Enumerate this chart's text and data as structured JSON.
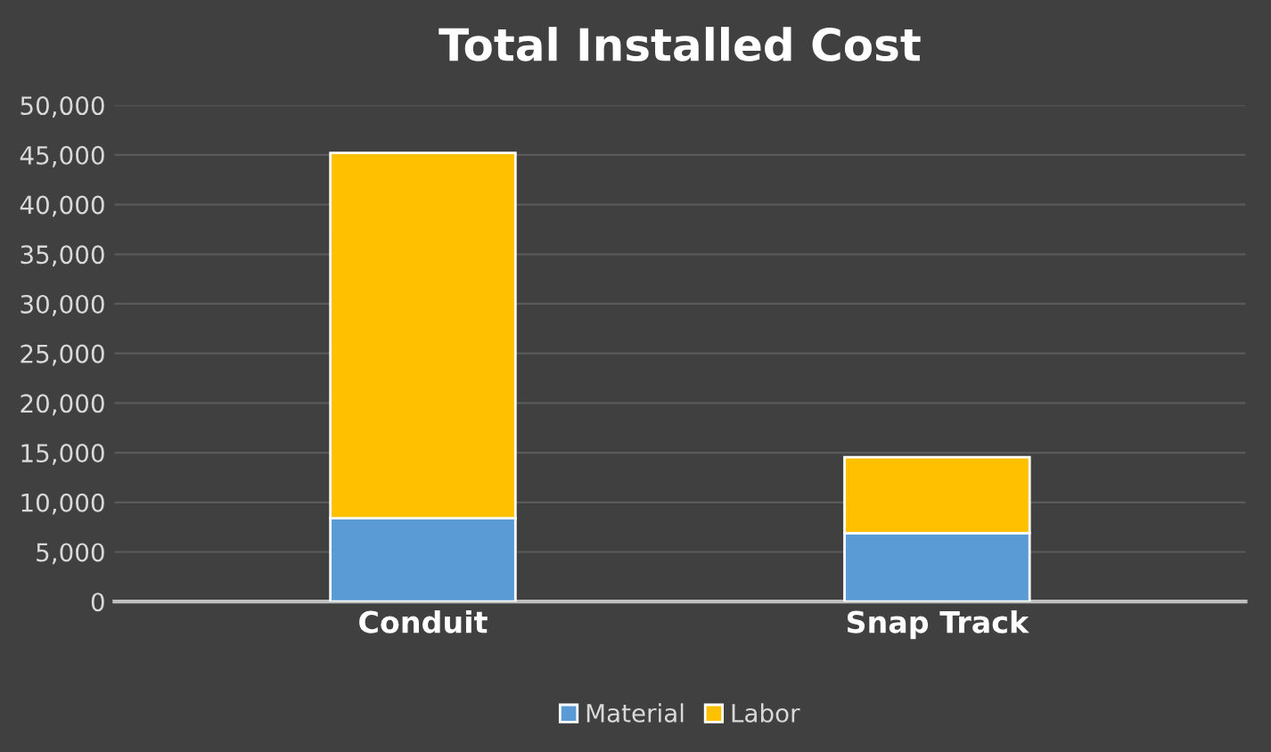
{
  "chart_data": {
    "type": "bar",
    "title": "Total Installed Cost",
    "categories": [
      "Conduit",
      "Snap Track"
    ],
    "stacked": true,
    "series": [
      {
        "name": "Material",
        "color": "#5b9bd5",
        "values": [
          8400,
          6900
        ]
      },
      {
        "name": "Labor",
        "color": "#ffc000",
        "values": [
          36800,
          7650
        ]
      }
    ],
    "ylim": [
      0,
      50000
    ],
    "yticks": [
      {
        "value": 0,
        "label": "0"
      },
      {
        "value": 5000,
        "label": "5,000"
      },
      {
        "value": 10000,
        "label": "10,000"
      },
      {
        "value": 15000,
        "label": "15,000"
      },
      {
        "value": 20000,
        "label": "20,000"
      },
      {
        "value": 25000,
        "label": "25,000"
      },
      {
        "value": 30000,
        "label": "30,000"
      },
      {
        "value": 35000,
        "label": "35,000"
      },
      {
        "value": 40000,
        "label": "40,000"
      },
      {
        "value": 45000,
        "label": "45,000"
      },
      {
        "value": 50000,
        "label": "50,000"
      }
    ],
    "grid": "y",
    "legend": "bottom"
  }
}
